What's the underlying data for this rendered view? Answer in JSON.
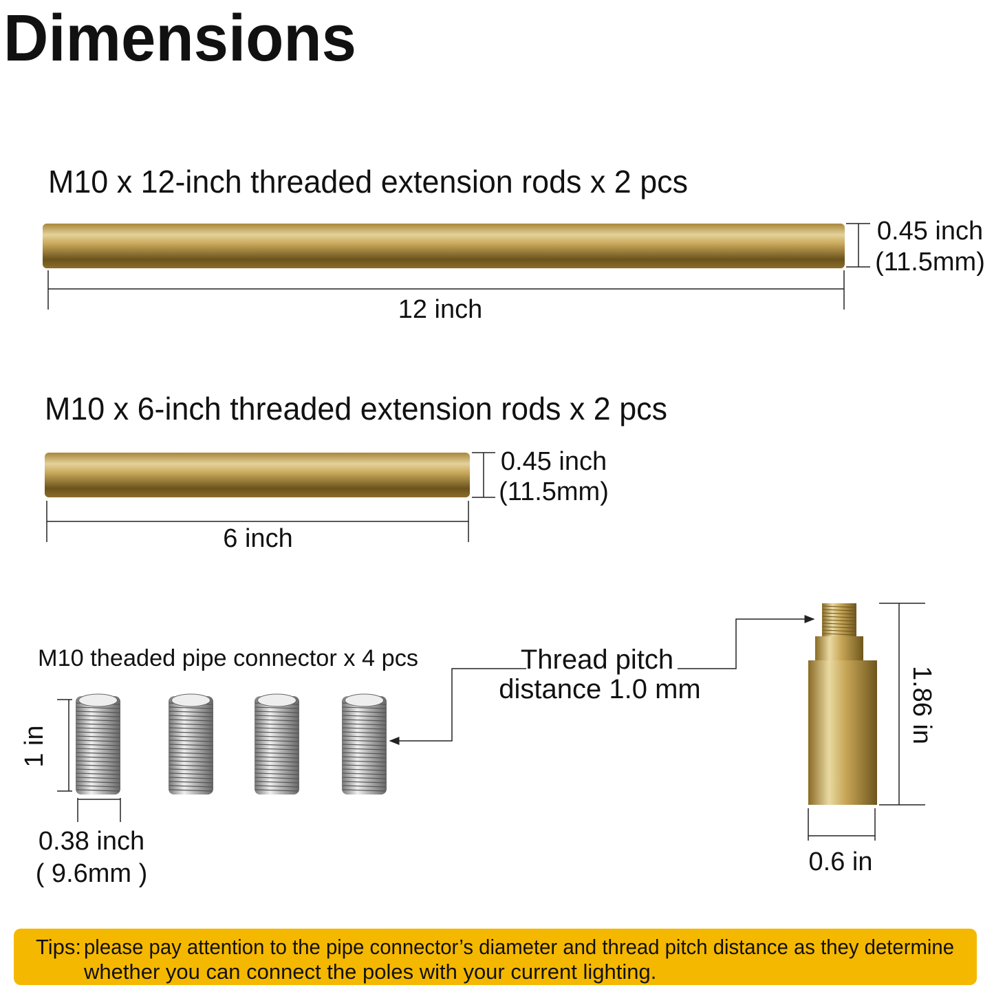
{
  "header": {
    "title": "Dimensions"
  },
  "rods": [
    {
      "label": "M10 x 12-inch threaded extension rods x 2 pcs",
      "diameter_inch": "0.45 inch",
      "diameter_mm": "(11.5mm)",
      "length": "12 inch"
    },
    {
      "label": "M10 x 6-inch threaded extension rods x 2 pcs",
      "diameter_inch": "0.45 inch",
      "diameter_mm": "(11.5mm)",
      "length": "6 inch"
    }
  ],
  "connector": {
    "label": "M10 theaded pipe connector x 4 pcs",
    "length": "1 in",
    "diameter_inch": "0.38 inch",
    "diameter_mm": "( 9.6mm )"
  },
  "adapter": {
    "pitch_line1": "Thread pitch",
    "pitch_line2": "distance 1.0 mm",
    "height": "1.86 in",
    "width": "0.6 in"
  },
  "tips": {
    "label": "Tips:",
    "line1": "please pay attention to the pipe connector’s diameter and thread pitch distance as they determine",
    "line2": "whether you can connect the poles with your current lighting."
  }
}
